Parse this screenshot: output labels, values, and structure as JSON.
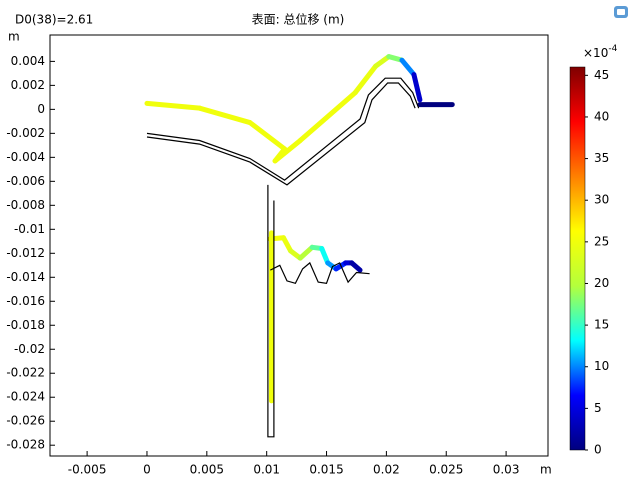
{
  "chart_data": {
    "type": "surface",
    "title": "表面: 总位移 (m)",
    "subtitle": "D0(38)=2.61",
    "xlabel": "m",
    "ylabel": "m",
    "xlim": [
      -0.0081,
      0.0335
    ],
    "ylim": [
      -0.0289,
      0.0062
    ],
    "xticks": [
      -0.005,
      0,
      0.005,
      0.01,
      0.015,
      0.02,
      0.025,
      0.03
    ],
    "yticks": [
      0.004,
      0.002,
      0,
      -0.002,
      -0.004,
      -0.006,
      -0.008,
      -0.01,
      -0.012,
      -0.014,
      -0.016,
      -0.018,
      -0.02,
      -0.022,
      -0.024,
      -0.026,
      -0.028
    ],
    "colorbar_label": "×10",
    "colorbar_exponent": "-4",
    "clim": [
      0,
      46
    ],
    "cticks": [
      0,
      5,
      10,
      15,
      20,
      25,
      30,
      35,
      40,
      45
    ],
    "colorscale": [
      "#00007f",
      "#0000ff",
      "#00ffff",
      "#b4ff3c",
      "#ffff00",
      "#ff8000",
      "#ff0000",
      "#7f0000"
    ],
    "outline_color": "#000000",
    "outlines": [
      {
        "x": [
          0,
          0.0044,
          0.0086,
          0.0115,
          0.0178,
          0.0185,
          0.0199,
          0.0212,
          0.0222,
          0.0227
        ],
        "y": [
          -0.002,
          -0.0026,
          -0.0041,
          -0.0059,
          -0.0008,
          0.0012,
          0.0026,
          0.0026,
          0.0014,
          0.0001
        ]
      },
      {
        "x": [
          0,
          0.0044,
          0.0086,
          0.0117,
          0.0182,
          0.0188,
          0.0201,
          0.021,
          0.022,
          0.0224
        ],
        "y": [
          -0.0023,
          -0.0029,
          -0.0044,
          -0.0063,
          -0.0011,
          0.0008,
          0.0022,
          0.0022,
          0.0011,
          0.0001
        ]
      },
      {
        "x": [
          0.0101,
          0.0101,
          0.0106,
          0.0106
        ],
        "y": [
          -0.0063,
          -0.0273,
          -0.0273,
          -0.0076
        ]
      },
      {
        "x": [
          0.0103,
          0.0111,
          0.0117,
          0.0124,
          0.013,
          0.0136,
          0.0143,
          0.015,
          0.0155,
          0.0161,
          0.0168,
          0.0175,
          0.0186
        ],
        "y": [
          -0.0134,
          -0.013,
          -0.0143,
          -0.0145,
          -0.0133,
          -0.0128,
          -0.0144,
          -0.0145,
          -0.0131,
          -0.0128,
          -0.0144,
          -0.0136,
          -0.0137
        ]
      }
    ],
    "deformed": [
      {
        "x": [
          0,
          0.0044,
          0.0086,
          0.0115,
          0.0107,
          0.0128,
          0.0174,
          0.0191,
          0.0202,
          0.0213,
          0.0223,
          0.0228
        ],
        "y": [
          0.0005,
          0.0001,
          -0.0011,
          -0.0033,
          -0.0043,
          -0.0026,
          0.0014,
          0.0036,
          0.0044,
          0.0041,
          0.0029,
          0.0008
        ],
        "values": [
          25,
          25,
          25,
          25,
          25,
          25,
          25,
          24,
          22,
          14,
          6,
          2
        ]
      },
      {
        "x": [
          0.0228,
          0.0255
        ],
        "y": [
          0.0004,
          0.0004
        ],
        "values": [
          0,
          0
        ]
      },
      {
        "x": [
          0.0103,
          0.0114,
          0.012,
          0.0128,
          0.0138,
          0.0146,
          0.0151,
          0.0158,
          0.0166,
          0.0171,
          0.0178
        ],
        "y": [
          -0.0108,
          -0.0107,
          -0.0118,
          -0.0124,
          -0.0115,
          -0.0116,
          -0.0128,
          -0.0133,
          -0.0128,
          -0.0128,
          -0.0134
        ],
        "values": [
          26,
          25,
          24,
          22,
          18,
          15,
          12,
          9,
          6,
          3,
          1
        ]
      },
      {
        "x": [
          0.0104,
          0.0104,
          0.0104
        ],
        "y": [
          -0.0103,
          -0.0185,
          -0.0243
        ],
        "values": [
          25,
          25,
          25
        ]
      }
    ]
  }
}
